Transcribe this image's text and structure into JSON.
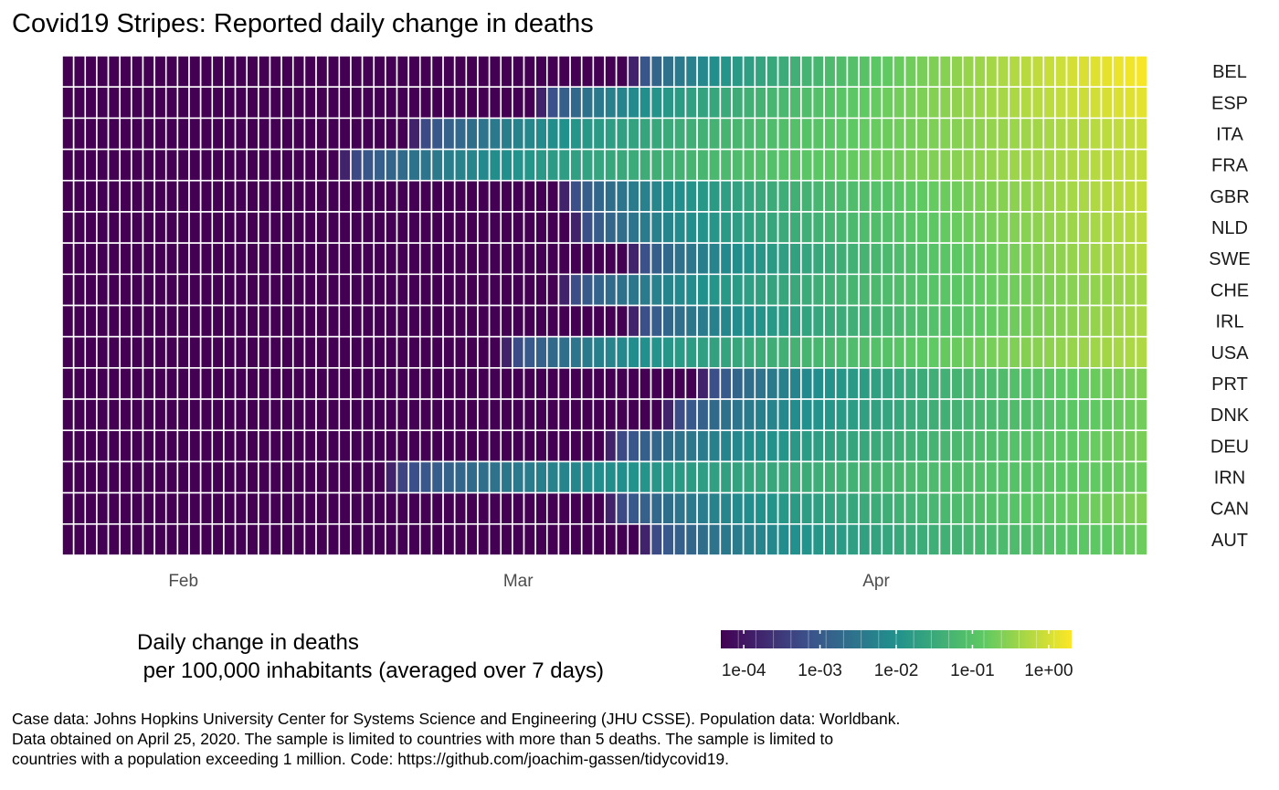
{
  "title": "Covid19 Stripes: Reported daily change in deaths",
  "chart_data": {
    "type": "heatmap",
    "x_axis": {
      "type": "date",
      "start": "2020-01-22",
      "end": "2020-04-24",
      "tick_labels": [
        {
          "label": "Feb",
          "date": "2020-02-01"
        },
        {
          "label": "Mar",
          "date": "2020-03-01"
        },
        {
          "label": "Apr",
          "date": "2020-04-01"
        }
      ]
    },
    "y_axis": {
      "position": "right"
    },
    "color_scale": {
      "palette": "viridis",
      "scale": "log10",
      "colors": [
        "#440154",
        "#3b528b",
        "#21918c",
        "#5ec962",
        "#fde725"
      ],
      "range": [
        5e-05,
        2
      ],
      "ticks": [
        0.0001,
        0.001,
        0.01,
        0.1,
        1
      ],
      "tick_labels": [
        "1e-04",
        "1e-03",
        "1e-02",
        "1e-01",
        "1e+00"
      ],
      "title": "Daily change in deaths\n per 100,000 inhabitants (averaged over 7 days)",
      "legend_position": "bottom"
    },
    "rows": [
      {
        "country": "BEL",
        "first_death": "2020-03-11",
        "peak_value": 1.8
      },
      {
        "country": "ESP",
        "first_death": "2020-03-03",
        "peak_value": 1.3
      },
      {
        "country": "ITA",
        "first_death": "2020-02-21",
        "peak_value": 0.8
      },
      {
        "country": "FRA",
        "first_death": "2020-02-15",
        "peak_value": 0.75
      },
      {
        "country": "GBR",
        "first_death": "2020-03-05",
        "peak_value": 0.75
      },
      {
        "country": "NLD",
        "first_death": "2020-03-06",
        "peak_value": 0.65
      },
      {
        "country": "SWE",
        "first_death": "2020-03-11",
        "peak_value": 0.6
      },
      {
        "country": "CHE",
        "first_death": "2020-03-05",
        "peak_value": 0.45
      },
      {
        "country": "IRL",
        "first_death": "2020-03-11",
        "peak_value": 0.5
      },
      {
        "country": "USA",
        "first_death": "2020-02-29",
        "peak_value": 0.55
      },
      {
        "country": "PRT",
        "first_death": "2020-03-17",
        "peak_value": 0.25
      },
      {
        "country": "DNK",
        "first_death": "2020-03-14",
        "peak_value": 0.2
      },
      {
        "country": "DEU",
        "first_death": "2020-03-09",
        "peak_value": 0.22
      },
      {
        "country": "IRN",
        "first_death": "2020-02-19",
        "peak_value": 0.18
      },
      {
        "country": "CAN",
        "first_death": "2020-03-09",
        "peak_value": 0.25
      },
      {
        "country": "AUT",
        "first_death": "2020-03-12",
        "peak_value": 0.18
      }
    ]
  },
  "caption": [
    "Case data: Johns Hopkins University Center for Systems Science and Engineering (JHU CSSE). Population data: Worldbank.",
    "Data obtained on April 25, 2020. The sample is limited to countries with more than 5 deaths. The sample is limited to",
    "countries with a population exceeding 1 million. Code: https://github.com/joachim-gassen/tidycovid19."
  ]
}
